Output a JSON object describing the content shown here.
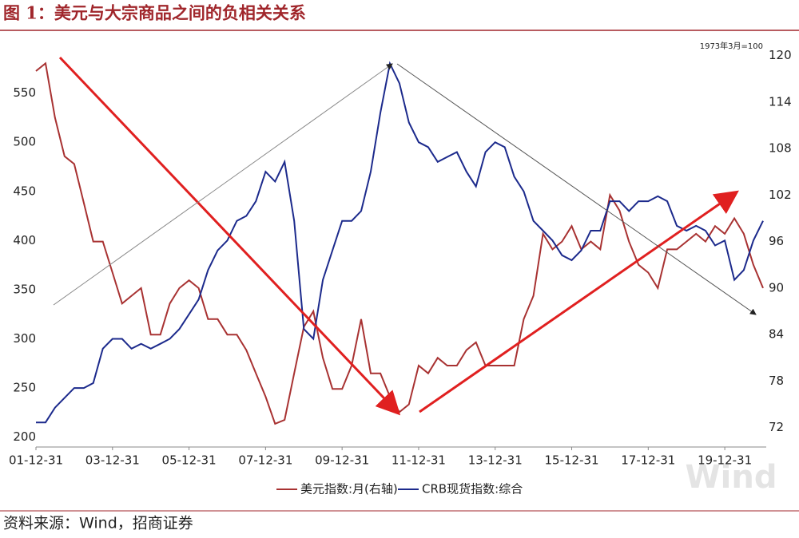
{
  "chart_data": {
    "type": "line",
    "title": "图 1：美元与大宗商品之间的负相关关系",
    "annotation": "1973年3月=100",
    "source": "资料来源：Wind，招商证券",
    "watermark": "Wind",
    "x": [
      "01-12-31",
      "02-03-31",
      "02-06-30",
      "02-09-30",
      "02-12-31",
      "03-03-31",
      "03-06-30",
      "03-09-30",
      "03-12-31",
      "04-03-31",
      "04-06-30",
      "04-09-30",
      "04-12-31",
      "05-03-31",
      "05-06-30",
      "05-09-30",
      "05-12-31",
      "06-03-31",
      "06-06-30",
      "06-09-30",
      "06-12-31",
      "07-03-31",
      "07-06-30",
      "07-09-30",
      "07-12-31",
      "08-03-31",
      "08-06-30",
      "08-09-30",
      "08-12-31",
      "09-03-31",
      "09-06-30",
      "09-09-30",
      "09-12-31",
      "10-03-31",
      "10-06-30",
      "10-09-30",
      "10-12-31",
      "11-03-31",
      "11-06-30",
      "11-09-30",
      "11-12-31",
      "12-03-31",
      "12-06-30",
      "12-09-30",
      "12-12-31",
      "13-03-31",
      "13-06-30",
      "13-09-30",
      "13-12-31",
      "14-03-31",
      "14-06-30",
      "14-09-30",
      "14-12-31",
      "15-03-31",
      "15-06-30",
      "15-09-30",
      "15-12-31",
      "16-03-31",
      "16-06-30",
      "16-09-30",
      "16-12-31",
      "17-03-31",
      "17-06-30",
      "17-09-30",
      "17-12-31",
      "18-03-31",
      "18-06-30",
      "18-09-30",
      "18-12-31",
      "19-03-31",
      "19-06-30",
      "19-09-30",
      "19-12-31",
      "20-03-31",
      "20-06-30",
      "20-09-30",
      "20-12-31"
    ],
    "xlim": [
      "01-12-31",
      "21-01-31"
    ],
    "xticks": [
      "01-12-31",
      "03-12-31",
      "05-12-31",
      "07-12-31",
      "09-12-31",
      "11-12-31",
      "13-12-31",
      "15-12-31",
      "17-12-31",
      "19-12-31"
    ],
    "ylim": [
      190,
      600
    ],
    "yticks": [
      200,
      250,
      300,
      350,
      400,
      450,
      500,
      550
    ],
    "y2lim": [
      69.5,
      121.5
    ],
    "y2ticks": [
      72,
      78,
      84,
      90,
      96,
      102,
      108,
      114,
      120
    ],
    "series": [
      {
        "name": "美元指数:月(右轴)",
        "color": "#a83232",
        "axis": "y2",
        "values": [
          118,
          119,
          112,
          107,
          106,
          101,
          96,
          96,
          92,
          88,
          89,
          90,
          84,
          84,
          88,
          90,
          91,
          90,
          86,
          86,
          84,
          84,
          82,
          79,
          76,
          72.5,
          73,
          79,
          85,
          87,
          81,
          77,
          77,
          80,
          86,
          79,
          79,
          76,
          74,
          75,
          80,
          79,
          81,
          80,
          80,
          82,
          83,
          80,
          80,
          80,
          80,
          86,
          89,
          97,
          95,
          96,
          98,
          95,
          96,
          95,
          102,
          100,
          96,
          93,
          92,
          90,
          95,
          95,
          96,
          97,
          96,
          98,
          97,
          99,
          97,
          93,
          90
        ]
      },
      {
        "name": "CRB现货指数:综合",
        "color": "#1c2a8c",
        "values": [
          215,
          215,
          230,
          240,
          250,
          250,
          255,
          290,
          300,
          300,
          290,
          295,
          290,
          295,
          300,
          310,
          325,
          340,
          370,
          390,
          400,
          420,
          425,
          440,
          470,
          460,
          480,
          420,
          310,
          300,
          360,
          390,
          420,
          420,
          430,
          470,
          530,
          580,
          560,
          520,
          500,
          495,
          480,
          485,
          490,
          470,
          455,
          490,
          500,
          495,
          465,
          450,
          420,
          410,
          400,
          385,
          380,
          390,
          410,
          410,
          440,
          440,
          430,
          440,
          440,
          445,
          440,
          415,
          410,
          415,
          410,
          395,
          400,
          360,
          370,
          400,
          420
        ]
      }
    ]
  }
}
